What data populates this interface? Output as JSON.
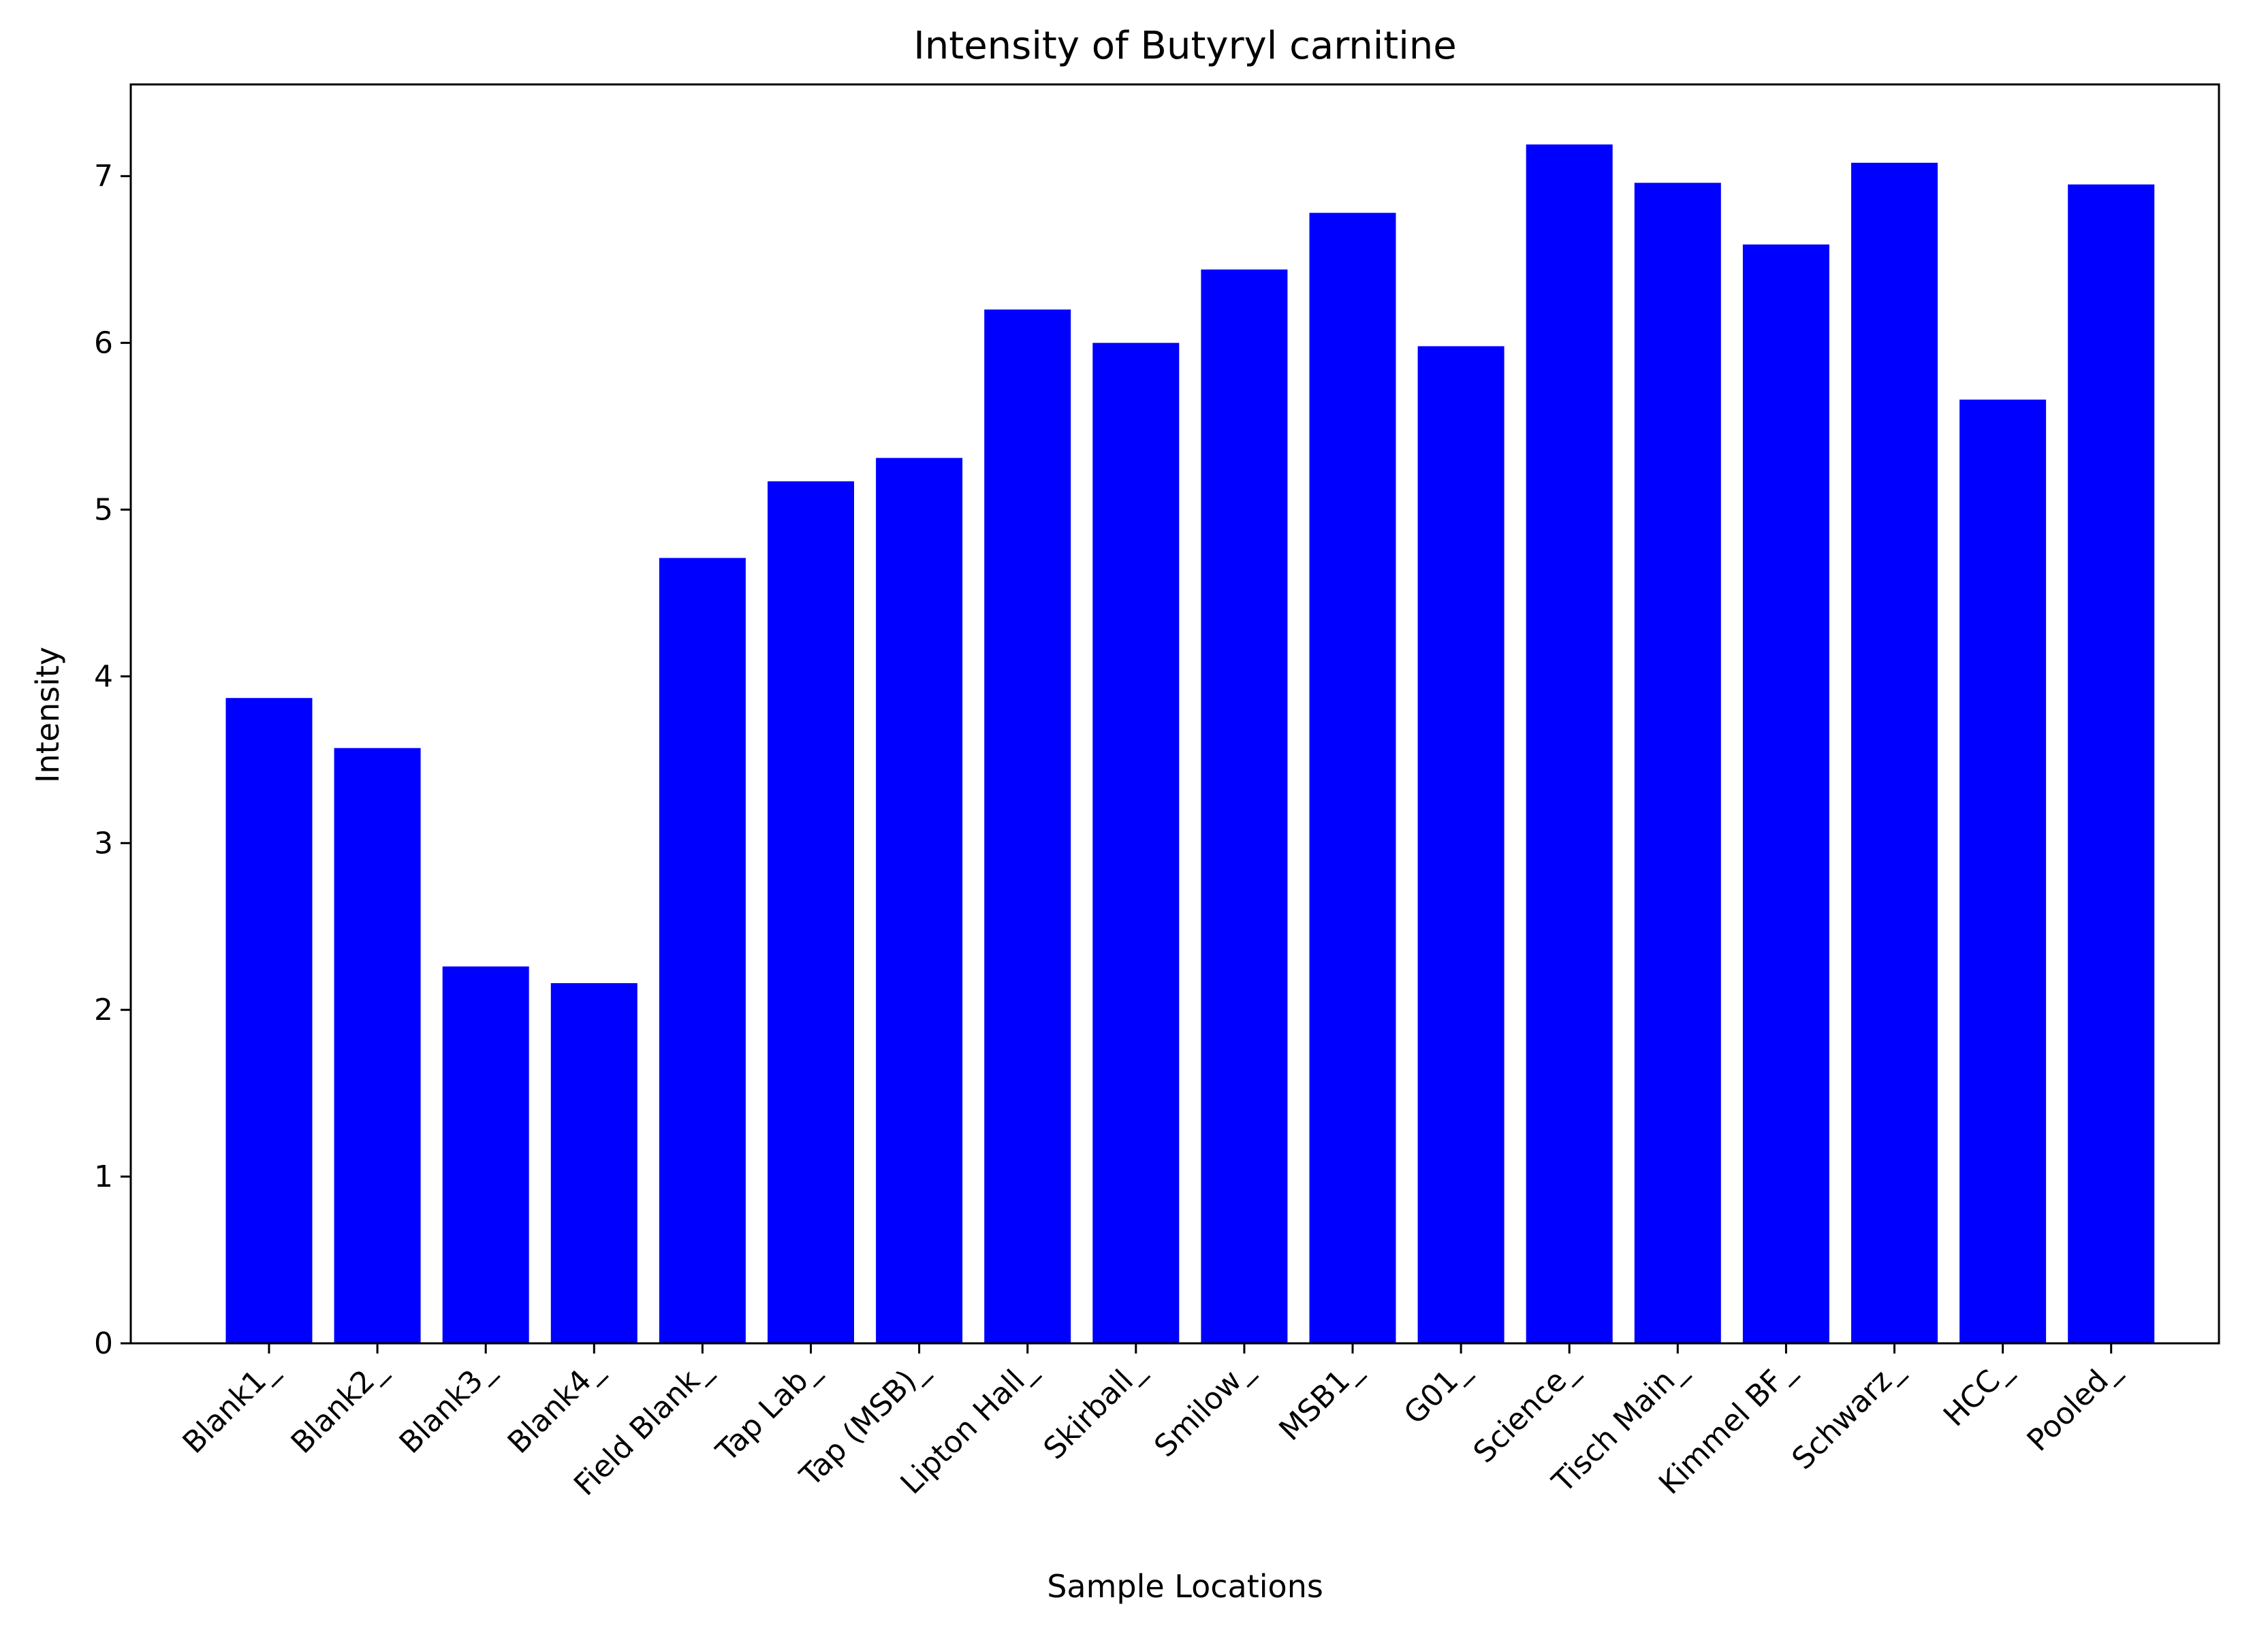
{
  "chart_data": {
    "type": "bar",
    "title": "Intensity of Butyryl carnitine",
    "xlabel": "Sample Locations",
    "ylabel": "Intensity",
    "categories": [
      "Blank1_",
      "Blank2_",
      "Blank3_",
      "Blank4_",
      "Field Blank_",
      "Tap Lab_",
      "Tap (MSB)_",
      "Lipton Hall_",
      "Skirball_",
      "Smilow_",
      "MSB1_",
      "G01_",
      "Science_",
      "Tisch Main_",
      "Kimmel BF_",
      "Schwarz_",
      "HCC_",
      "Pooled_"
    ],
    "values": [
      3.87,
      3.57,
      2.26,
      2.16,
      4.71,
      5.17,
      5.31,
      6.2,
      6.0,
      6.44,
      6.78,
      5.98,
      7.19,
      6.96,
      6.59,
      7.08,
      5.66,
      6.95
    ],
    "yticks": [
      0,
      1,
      2,
      3,
      4,
      5,
      6,
      7
    ],
    "ylim": [
      0,
      7.55
    ],
    "bar_color": "#0000ff",
    "grid": false,
    "legend": "none"
  }
}
